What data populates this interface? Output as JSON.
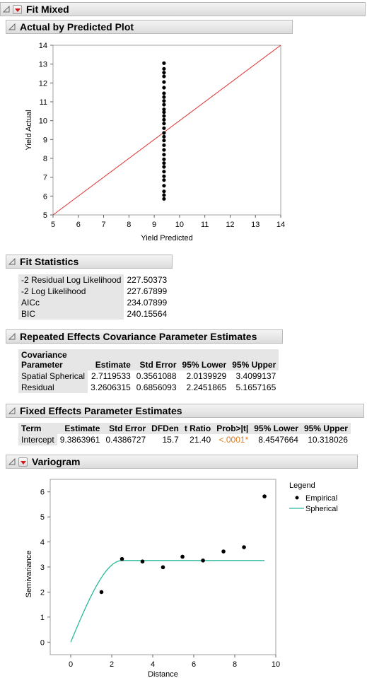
{
  "title": "Fit Mixed",
  "actual_by_predicted": {
    "header": "Actual by Predicted Plot",
    "chart_data": {
      "type": "scatter",
      "xlabel": "Yield Predicted",
      "ylabel": "Yield Actual",
      "xlim": [
        5,
        14
      ],
      "ylim": [
        5,
        14
      ],
      "xticks": [
        "5",
        "6",
        "7",
        "8",
        "9",
        "10",
        "11",
        "12",
        "13",
        "14"
      ],
      "yticks": [
        "5",
        "6",
        "7",
        "8",
        "9",
        "10",
        "11",
        "12",
        "13",
        "14"
      ],
      "reference_line": {
        "color": "#e03030",
        "from": [
          5,
          5
        ],
        "to": [
          14,
          14
        ]
      },
      "point_color": "#000000",
      "x": 9.386,
      "y": [
        5.85,
        6.05,
        6.25,
        6.55,
        6.85,
        7.05,
        7.3,
        7.55,
        7.75,
        7.95,
        8.2,
        8.45,
        8.7,
        8.95,
        9.15,
        9.35,
        9.6,
        9.85,
        10.05,
        10.25,
        10.45,
        10.6,
        10.85,
        11.05,
        11.25,
        11.45,
        11.75,
        12.05,
        12.35,
        12.55,
        12.75,
        13.05
      ]
    }
  },
  "fit_statistics": {
    "header": "Fit Statistics",
    "rows": [
      {
        "label": "-2 Residual Log Likelihood",
        "value": "227.50373"
      },
      {
        "label": "-2 Log Likelihood",
        "value": "227.67899"
      },
      {
        "label": "AICc",
        "value": "234.07899"
      },
      {
        "label": "BIC",
        "value": "240.15564"
      }
    ]
  },
  "repeated_effects": {
    "header": "Repeated Effects Covariance Parameter Estimates",
    "columns": [
      "Covariance Parameter",
      "Estimate",
      "Std Error",
      "95% Lower",
      "95% Upper"
    ],
    "col_head_line1": "Covariance",
    "col_head_line2": "Parameter",
    "rows": [
      [
        "Spatial Spherical",
        "2.7119533",
        "0.3561088",
        "2.0139929",
        "3.4099137"
      ],
      [
        "Residual",
        "3.2606315",
        "0.6856093",
        "2.2451865",
        "5.1657165"
      ]
    ]
  },
  "fixed_effects": {
    "header": "Fixed Effects Parameter Estimates",
    "columns": [
      "Term",
      "Estimate",
      "Std Error",
      "DFDen",
      "t Ratio",
      "Prob>|t|",
      "95% Lower",
      "95% Upper"
    ],
    "rows": [
      [
        "Intercept",
        "9.3863961",
        "0.4386727",
        "15.7",
        "21.40",
        "<.0001*",
        "8.4547664",
        "10.318026"
      ]
    ],
    "significant_color": "#e07a1a"
  },
  "variogram": {
    "header": "Variogram",
    "legend_title": "Legend",
    "legend_items": [
      {
        "label": "Empirical",
        "color": "#000000",
        "marker": "dot"
      },
      {
        "label": "Spherical",
        "color": "#2ab89a",
        "marker": "line"
      }
    ],
    "chart_data": {
      "type": "scatter",
      "xlabel": "Distance",
      "ylabel": "Semivariance",
      "xlim": [
        -1,
        10
      ],
      "ylim": [
        -0.5,
        6.5
      ],
      "xticks": [
        "0",
        "2",
        "4",
        "6",
        "8",
        "10"
      ],
      "yticks": [
        "0",
        "1",
        "2",
        "3",
        "4",
        "5",
        "6"
      ],
      "empirical": {
        "x": [
          1.5,
          2.5,
          3.5,
          4.5,
          5.45,
          6.45,
          7.45,
          8.45,
          9.45
        ],
        "y": [
          2.0,
          3.32,
          3.22,
          2.99,
          3.41,
          3.26,
          3.62,
          3.79,
          5.82
        ]
      },
      "spherical": {
        "nugget": 0,
        "sill": 3.26,
        "range": 2.5,
        "x_max": 9.45
      }
    }
  }
}
